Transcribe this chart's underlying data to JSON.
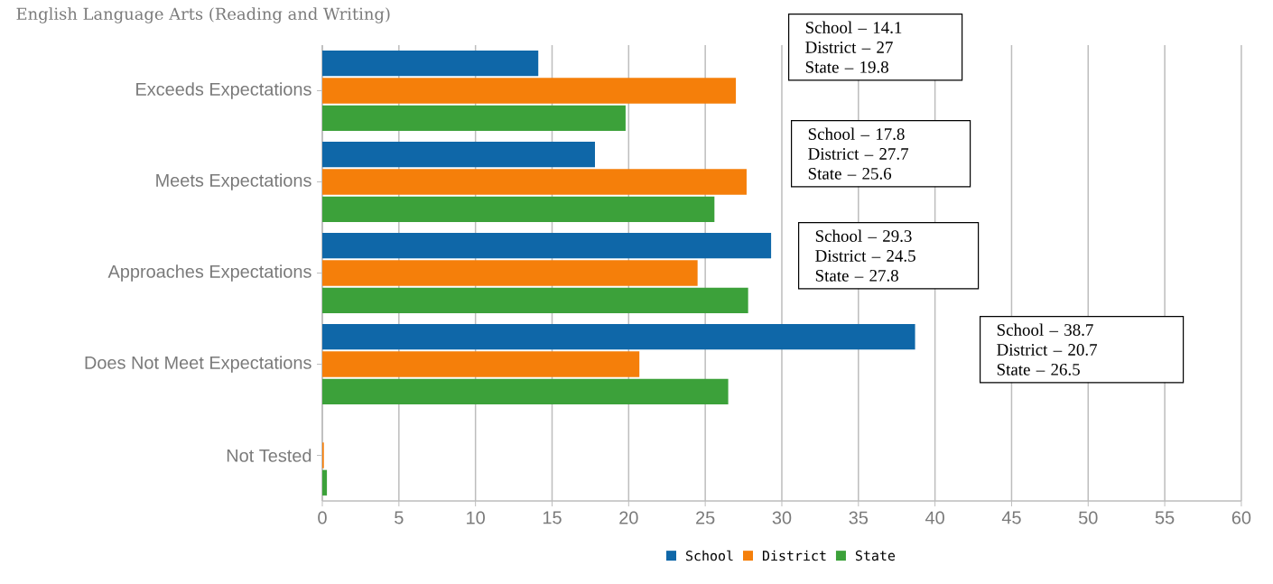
{
  "chart_data": {
    "type": "bar",
    "orientation": "horizontal",
    "title": "English Language Arts (Reading and Writing)",
    "categories": [
      "Exceeds Expectations",
      "Meets Expectations",
      "Approaches Expectations",
      "Does Not Meet Expectations",
      "Not Tested"
    ],
    "series": [
      {
        "name": "School",
        "color": "#0f67a8",
        "values": [
          14.1,
          17.8,
          29.3,
          38.7,
          0
        ]
      },
      {
        "name": "District",
        "color": "#f57f0a",
        "values": [
          27,
          27.7,
          24.5,
          20.7,
          0.1
        ]
      },
      {
        "name": "State",
        "color": "#3ca13a",
        "values": [
          19.8,
          25.6,
          27.8,
          26.5,
          0.3
        ]
      }
    ],
    "xlim": [
      0,
      60
    ],
    "xticks": [
      0,
      5,
      10,
      15,
      20,
      25,
      30,
      35,
      40,
      45,
      50,
      55,
      60
    ],
    "grid": "x",
    "legend": "bottom",
    "annotations": [
      "School – 14.1",
      "District – 27",
      "State – 19.8",
      "School – 17.8",
      "District – 27.7",
      "State – 25.6",
      "School – 29.3",
      "District – 24.5",
      "State – 27.8",
      "School – 38.7",
      "District – 20.7",
      "State – 26.5"
    ]
  }
}
